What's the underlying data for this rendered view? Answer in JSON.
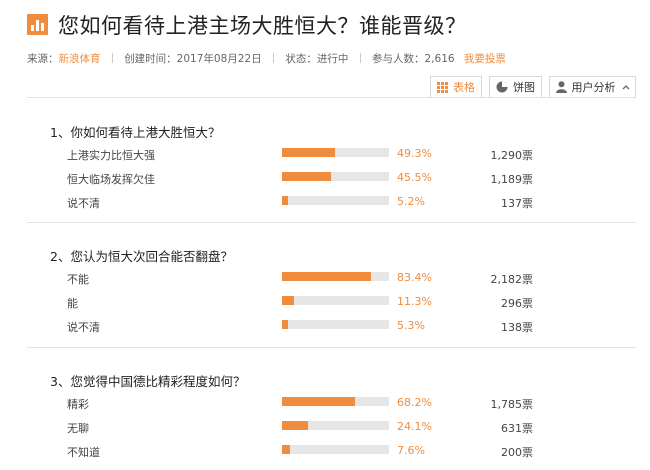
{
  "header": {
    "title": "您如何看待上港主场大胜恒大？谁能晋级？",
    "meta": {
      "source_label": "来源：",
      "source_value": "新浪体育",
      "created": "创建时间：2017年08月22日",
      "status": "状态：进行中",
      "participants": "参与人数：2,616",
      "vote_link": "我要投票"
    }
  },
  "toolbar": {
    "table_label": "表格",
    "pie_label": "饼图",
    "user_analysis_label": "用户分析"
  },
  "questions": [
    {
      "title": "1、你如何看待上港大胜恒大？",
      "options": [
        {
          "label": "上港实力比恒大强",
          "percent": "49.3%",
          "count": "1,290票",
          "value": 0.493
        },
        {
          "label": "恒大临场发挥欠佳",
          "percent": "45.5%",
          "count": "1,189票",
          "value": 0.455
        },
        {
          "label": "说不清",
          "percent": "5.2%",
          "count": "137票",
          "value": 0.052
        }
      ]
    },
    {
      "title": "2、您认为恒大次回合能否翻盘？",
      "options": [
        {
          "label": "不能",
          "percent": "83.4%",
          "count": "2,182票",
          "value": 0.834
        },
        {
          "label": "能",
          "percent": "11.3%",
          "count": "296票",
          "value": 0.113
        },
        {
          "label": "说不清",
          "percent": "5.3%",
          "count": "138票",
          "value": 0.053
        }
      ]
    },
    {
      "title": "3、您觉得中国德比精彩程度如何？",
      "options": [
        {
          "label": "精彩",
          "percent": "68.2%",
          "count": "1,785票",
          "value": 0.682
        },
        {
          "label": "无聊",
          "percent": "24.1%",
          "count": "631票",
          "value": 0.241
        },
        {
          "label": "不知道",
          "percent": "7.6%",
          "count": "200票",
          "value": 0.076
        }
      ]
    }
  ],
  "colors": {
    "accent": "#f08c3d",
    "bar_bg": "#e6e6e6"
  }
}
